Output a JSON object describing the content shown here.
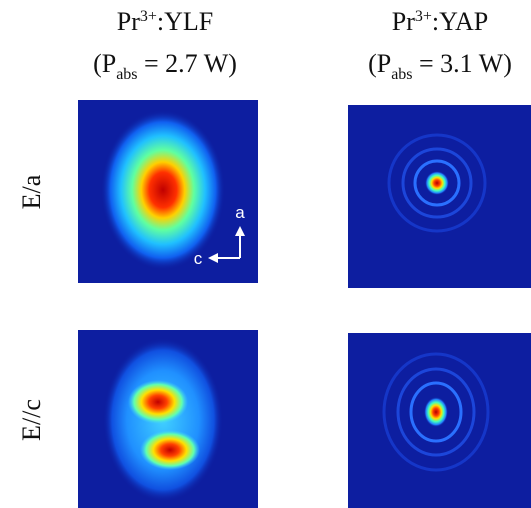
{
  "columns": [
    {
      "title": {
        "base": "Pr",
        "sup": "3+",
        "host": ":YLF"
      },
      "power": {
        "open": "(P",
        "sub": "abs",
        "rest": " = 2.7 W)"
      }
    },
    {
      "title": {
        "base": "Pr",
        "sup": "3+",
        "host": ":YAP"
      },
      "power": {
        "open": "(P",
        "sub": "abs",
        "rest": " = 3.1 W)"
      }
    }
  ],
  "rows": [
    {
      "label": "E/a"
    },
    {
      "label": "E//c"
    }
  ],
  "axes": {
    "vertical": "a",
    "horizontal": "c"
  }
}
